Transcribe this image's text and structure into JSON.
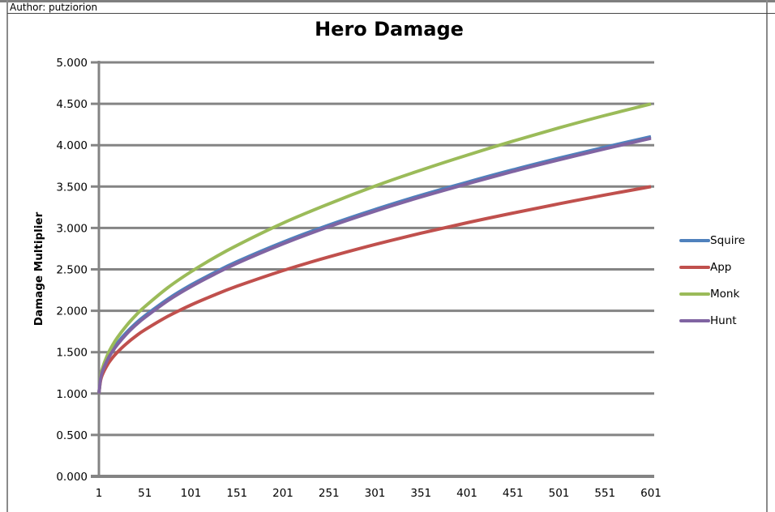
{
  "header": {
    "author_label": "Author: putziorion"
  },
  "chart_data": {
    "type": "line",
    "title": "Hero Damage",
    "xlabel": "",
    "ylabel": "Damage Multiplier",
    "xlim": [
      1,
      601
    ],
    "ylim": [
      0,
      5
    ],
    "grid": "horizontal",
    "legend_position": "right",
    "x_tick_values": [
      1,
      51,
      101,
      151,
      201,
      251,
      301,
      351,
      401,
      451,
      501,
      551,
      601
    ],
    "y_tick_values": [
      0,
      0.5,
      1,
      1.5,
      2,
      2.5,
      3,
      3.5,
      4,
      4.5,
      5
    ],
    "y_tick_labels": [
      "0.000",
      "0.500",
      "1.000",
      "1.500",
      "2.000",
      "2.500",
      "3.000",
      "3.500",
      "4.000",
      "4.500",
      "5.000"
    ],
    "x": [
      1,
      3,
      6,
      11,
      16,
      21,
      31,
      41,
      51,
      76,
      101,
      126,
      151,
      201,
      251,
      301,
      351,
      401,
      451,
      501,
      551,
      601
    ],
    "series": [
      {
        "name": "Squire",
        "color": "#4F81BD",
        "values": [
          1.0,
          1.213,
          1.321,
          1.441,
          1.533,
          1.61,
          1.739,
          1.847,
          1.94,
          2.142,
          2.311,
          2.458,
          2.593,
          2.828,
          3.036,
          3.223,
          3.395,
          3.552,
          3.703,
          3.843,
          3.976,
          4.103
        ]
      },
      {
        "name": "App",
        "color": "#C0504D",
        "values": [
          1.0,
          1.167,
          1.258,
          1.359,
          1.435,
          1.499,
          1.604,
          1.693,
          1.77,
          1.933,
          2.069,
          2.188,
          2.296,
          2.485,
          2.651,
          2.8,
          2.937,
          3.063,
          3.18,
          3.292,
          3.398,
          3.499
        ]
      },
      {
        "name": "Monk",
        "color": "#9BBB59",
        "values": [
          1.0,
          1.221,
          1.345,
          1.482,
          1.587,
          1.675,
          1.821,
          1.944,
          2.051,
          2.28,
          2.471,
          2.638,
          2.79,
          3.059,
          3.292,
          3.506,
          3.699,
          3.879,
          4.049,
          4.209,
          4.359,
          4.498
        ]
      },
      {
        "name": "Hunt",
        "color": "#8064A2",
        "values": [
          1.0,
          1.193,
          1.301,
          1.421,
          1.513,
          1.59,
          1.719,
          1.827,
          1.92,
          2.122,
          2.291,
          2.438,
          2.573,
          2.808,
          3.016,
          3.203,
          3.375,
          3.532,
          3.683,
          3.823,
          3.956,
          4.083
        ]
      }
    ]
  },
  "colors": {
    "gridline": "#848484",
    "axis": "#848484",
    "frame": "#7f7f7f",
    "text": "#000000"
  }
}
